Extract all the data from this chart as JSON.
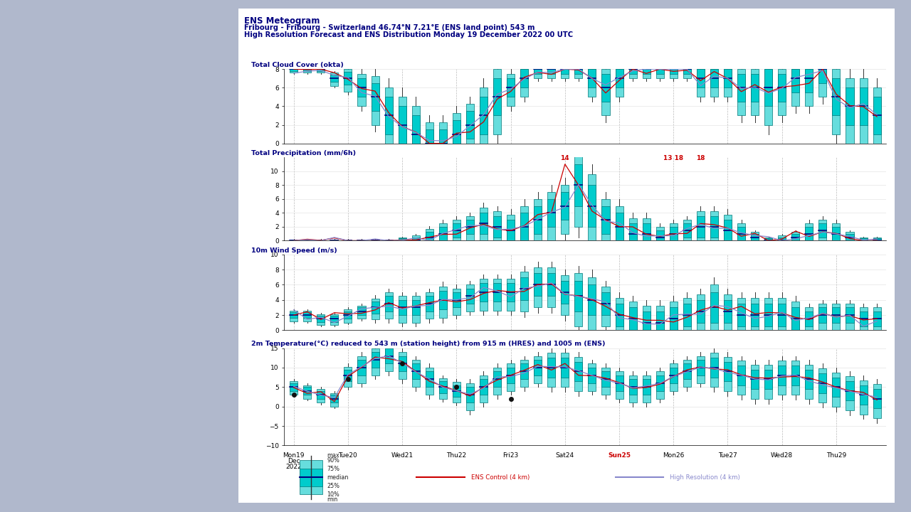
{
  "title_line1": "ENS Meteogram",
  "title_line2": "Fribourg - Fribourg - Switzerland 46.74°N 7.21°E (ENS land point) 543 m",
  "title_line3": "High Resolution Forecast and ENS Distribution Monday 19 December 2022 00 UTC",
  "bg_color": "#b0b8cc",
  "box_color_inner": "#00cccc",
  "box_color_outer": "#66dddd",
  "box_edge": "#007777",
  "median_color": "#000080",
  "hres_color": "#cc0000",
  "ctrl_color": "#8888cc",
  "sunday_color": "#cc0000",
  "whisker_color": "#333333",
  "x_labels": [
    "Mon19",
    "Tue20",
    "Wed21",
    "Thu22",
    "Fri23",
    "Sat24",
    "Sun25",
    "Mon26",
    "Tue27",
    "Wed28",
    "Thu29"
  ],
  "x_label_colors": [
    "#000000",
    "#000000",
    "#000000",
    "#000000",
    "#000000",
    "#000000",
    "#cc0000",
    "#000000",
    "#000000",
    "#000000",
    "#000000"
  ],
  "cloud_ylim": [
    0,
    8
  ],
  "cloud_yticks": [
    0,
    2,
    4,
    6,
    8
  ],
  "cloud_ylabel": "Total Cloud Cover (okta)",
  "precip_ylim": [
    0,
    12
  ],
  "precip_yticks": [
    0,
    2,
    4,
    6,
    8,
    10
  ],
  "precip_ylabel": "Total Precipitation (mm/6h)",
  "wind_ylim": [
    0,
    10
  ],
  "wind_yticks": [
    0,
    2,
    4,
    6,
    8,
    10
  ],
  "wind_ylabel": "10m Wind Speed (m/s)",
  "temp_ylim": [
    -10,
    15
  ],
  "temp_yticks": [
    -10,
    -5,
    0,
    5,
    10,
    15
  ],
  "temp_ylabel": "2m Temperature(°C) reduced to 543 m (station height) from 915 m (HRES) and 1005 m (ENS)",
  "legend_ctrl_label": "ENS Control (4 km)",
  "legend_hres_label": "High Resolution (4 km)"
}
